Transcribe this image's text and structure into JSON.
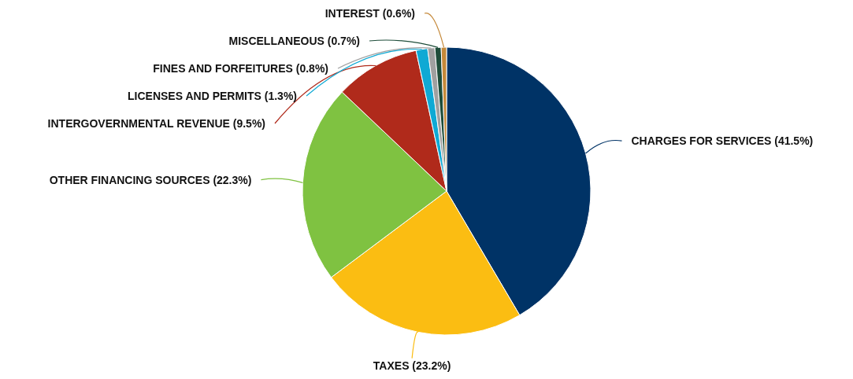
{
  "chart_data": {
    "type": "pie",
    "categories": [
      "CHARGES FOR SERVICES",
      "TAXES",
      "OTHER FINANCING SOURCES",
      "INTERGOVERNMENTAL REVENUE",
      "LICENSES AND PERMITS",
      "FINES AND FORFEITURES",
      "MISCELLANEOUS",
      "INTEREST"
    ],
    "values": [
      41.5,
      23.2,
      22.3,
      9.5,
      1.3,
      0.8,
      0.7,
      0.6
    ],
    "value_labels": [
      "(41.5%)",
      "(23.2%)",
      "(22.3%)",
      "(9.5%)",
      "(1.3%)",
      "(0.8%)",
      "(0.7%)",
      "(0.6%)"
    ],
    "colors": [
      "#003366",
      "#fbbd12",
      "#7fc241",
      "#b02a1b",
      "#0fa9d4",
      "#a0a0a0",
      "#1e4d3a",
      "#c5893a"
    ]
  }
}
